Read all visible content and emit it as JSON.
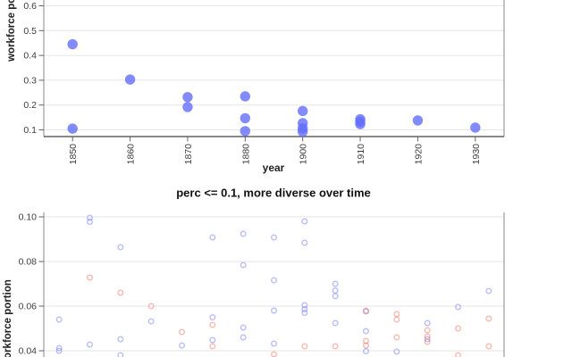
{
  "colors": {
    "blue_marker": "#636efa",
    "red_marker": "#ef553b",
    "gridline": "#e6e6e6",
    "axis_border": "#8a8a8a",
    "x_axis_line": "#444444",
    "tick": "#666666",
    "tick_text": "#3d3d3d"
  },
  "chart_data": [
    {
      "type": "scatter",
      "title": "",
      "xlabel": "year",
      "ylabel": "workforce portion",
      "legend": "none",
      "grid": "horizontal",
      "x_categories": [
        "1850",
        "1860",
        "1870",
        "1880",
        "1900",
        "1910",
        "1920",
        "1930"
      ],
      "ytick_labels": [
        "0.1",
        "0.2",
        "0.3",
        "0.4",
        "0.5",
        "0.6"
      ],
      "ylim_visible": [
        0.073,
        0.62
      ],
      "marker_style": "filled-circle",
      "marker_color": "#636efa",
      "marker_opacity": 0.8,
      "points": [
        [
          "1850",
          0.445
        ],
        [
          "1850",
          0.105
        ],
        [
          "1860",
          0.303
        ],
        [
          "1870",
          0.232
        ],
        [
          "1870",
          0.192
        ],
        [
          "1880",
          0.235
        ],
        [
          "1880",
          0.147
        ],
        [
          "1880",
          0.095
        ],
        [
          "1900",
          0.176
        ],
        [
          "1900",
          0.127
        ],
        [
          "1900",
          0.106
        ],
        [
          "1900",
          0.093
        ],
        [
          "1910",
          0.143
        ],
        [
          "1910",
          0.133
        ],
        [
          "1910",
          0.123
        ],
        [
          "1920",
          0.138
        ],
        [
          "1930",
          0.109
        ]
      ]
    },
    {
      "type": "scatter",
      "title": "perc <= 0.1, more diverse over time",
      "xlabel": "",
      "ylabel": "workforce portion",
      "legend": "none",
      "grid": "horizontal",
      "n_columns": 15,
      "ytick_labels": [
        "0.10",
        "0.08",
        "0.06",
        "0.04"
      ],
      "ylim_visible": [
        0.037,
        0.102
      ],
      "marker_style": "open-circle",
      "series": [
        {
          "name": "blue",
          "color": "#636efa",
          "opacity": 0.45,
          "points": [
            [
              0,
              0.054
            ],
            [
              0,
              0.0412
            ],
            [
              0,
              0.04
            ],
            [
              1,
              0.0996
            ],
            [
              1,
              0.0978
            ],
            [
              1,
              0.0428
            ],
            [
              2,
              0.0864
            ],
            [
              2,
              0.0452
            ],
            [
              2,
              0.038
            ],
            [
              3,
              0.0532
            ],
            [
              4,
              0.0424
            ],
            [
              5,
              0.0908
            ],
            [
              5,
              0.055
            ],
            [
              5,
              0.0448
            ],
            [
              6,
              0.0924
            ],
            [
              6,
              0.0784
            ],
            [
              6,
              0.0504
            ],
            [
              6,
              0.046
            ],
            [
              7,
              0.0908
            ],
            [
              7,
              0.0716
            ],
            [
              7,
              0.058
            ],
            [
              7,
              0.0432
            ],
            [
              8,
              0.098
            ],
            [
              8,
              0.0884
            ],
            [
              8,
              0.0604
            ],
            [
              8,
              0.0586
            ],
            [
              8,
              0.057
            ],
            [
              9,
              0.07
            ],
            [
              9,
              0.067
            ],
            [
              9,
              0.0645
            ],
            [
              9,
              0.0524
            ],
            [
              10,
              0.0576
            ],
            [
              10,
              0.0488
            ],
            [
              10,
              0.0398
            ],
            [
              11,
              0.0396
            ],
            [
              12,
              0.0524
            ],
            [
              12,
              0.0452
            ],
            [
              13,
              0.0596
            ],
            [
              14,
              0.0668
            ]
          ]
        },
        {
          "name": "red",
          "color": "#ef553b",
          "opacity": 0.4,
          "points": [
            [
              1,
              0.0728
            ],
            [
              2,
              0.066
            ],
            [
              3,
              0.06
            ],
            [
              4,
              0.0484
            ],
            [
              5,
              0.0516
            ],
            [
              5,
              0.042
            ],
            [
              7,
              0.0384
            ],
            [
              8,
              0.042
            ],
            [
              9,
              0.042
            ],
            [
              10,
              0.058
            ],
            [
              10,
              0.0444
            ],
            [
              10,
              0.0424
            ],
            [
              11,
              0.0564
            ],
            [
              11,
              0.054
            ],
            [
              11,
              0.046
            ],
            [
              12,
              0.0492
            ],
            [
              12,
              0.0464
            ],
            [
              12,
              0.044
            ],
            [
              13,
              0.05
            ],
            [
              13,
              0.038
            ],
            [
              14,
              0.0544
            ],
            [
              14,
              0.042
            ]
          ]
        }
      ]
    }
  ]
}
